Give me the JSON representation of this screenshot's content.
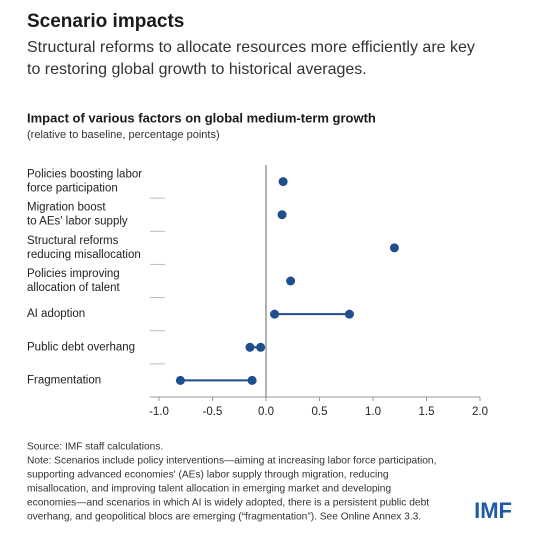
{
  "chart_data": {
    "type": "dotrange",
    "title": "Scenario impacts",
    "subtitle": [
      "Structural reforms to allocate resources more efficiently are key",
      "to restoring global growth to historical averages."
    ],
    "chart_title": "Impact of various factors on global medium-term growth",
    "chart_subtitle": "(relative to baseline, percentage points)",
    "categories": [
      [
        "Policies boosting labor",
        "force participation"
      ],
      [
        "Migration boost",
        "to AEs' labor supply"
      ],
      [
        "Structural reforms",
        "reducing misallocation"
      ],
      [
        "Policies improving",
        "allocation of talent"
      ],
      [
        "AI adoption"
      ],
      [
        "Public debt overhang"
      ],
      [
        "Fragmentation"
      ]
    ],
    "values": [
      [
        0.16
      ],
      [
        0.15
      ],
      [
        1.2
      ],
      [
        0.23
      ],
      [
        0.08,
        0.78
      ],
      [
        -0.15,
        -0.05
      ],
      [
        -0.8,
        -0.13
      ]
    ],
    "color": "#1f4e8c",
    "xlim": [
      -1,
      2
    ],
    "xticks": [
      {
        "value": -1,
        "label": "-1.0"
      },
      -0.5,
      {
        "value": 0,
        "label": "0.0"
      },
      0.5,
      {
        "value": 1,
        "label": "1.0"
      },
      1.5,
      {
        "value": 2,
        "label": "2.0"
      }
    ],
    "notes": [
      "Source: IMF staff calculations.",
      "Note: Scenarios include policy interventions—aiming at increasing labor force participation,",
      "supporting advanced economies' (AEs) labor supply through migration, reducing",
      "misallocation, and improving talent allocation in emerging market and developing",
      "economies—and scenarios in which AI is widely adopted, there is a persistent public debt",
      "overhang, and geopolitical blocs are emerging (“fragmentation”). See Online Annex 3.3."
    ],
    "logo": "IMF"
  }
}
